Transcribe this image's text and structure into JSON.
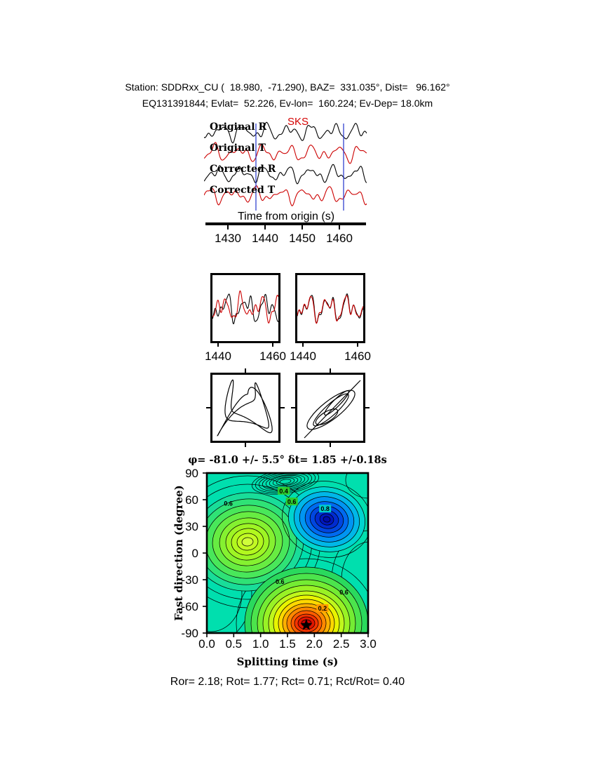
{
  "header": {
    "line1": "Station: SDDRxx_CU (  18.980,  -71.290), BAZ=  331.035°, Dist=   96.162°",
    "line2": "EQ131391844; Evlat=  52.226, Ev-lon=  160.224; Ev-Dep= 18.0km"
  },
  "waveform_panel": {
    "phase_label": "SKS",
    "phase_color": "#d40000",
    "traces": [
      {
        "label": "Original R",
        "color": "#000000"
      },
      {
        "label": "Original T",
        "color": "#cc0000"
      },
      {
        "label": "Corrected R",
        "color": "#000000"
      },
      {
        "label": "Corrected T",
        "color": "#cc0000"
      }
    ],
    "axis_label": "Time from origin (s)",
    "ticks": [
      "1430",
      "1440",
      "1450",
      "1460"
    ],
    "window_color": "#2233cc"
  },
  "zoom_panels": {
    "left_ticks": [
      "1440",
      "1460"
    ],
    "right_ticks": [
      "1440",
      "1460"
    ],
    "r_color": "#000000",
    "t_color": "#cc0000"
  },
  "contour": {
    "title": "φ= -81.0 +/- 5.5° δt= 1.85 +/-0.18s",
    "ylabel": "Fast direction (degree)",
    "xlabel": "Splitting time (s)",
    "yticks": [
      "90",
      "60",
      "30",
      "0",
      "-30",
      "-60",
      "-90"
    ],
    "xticks": [
      "0.0",
      "0.5",
      "1.0",
      "1.5",
      "2.0",
      "2.5",
      "3.0"
    ],
    "labels": [
      {
        "text": "0.6",
        "t": 0.4,
        "deg": 56,
        "bg": null
      },
      {
        "text": "0.4",
        "t": 1.43,
        "deg": 70,
        "bg": "#2ecc2e"
      },
      {
        "text": "0.6",
        "t": 1.58,
        "deg": 58,
        "bg": "#2ecc2e"
      },
      {
        "text": "0.8",
        "t": 2.2,
        "deg": 50,
        "bg": "#00cccc"
      },
      {
        "text": "0.6",
        "t": 1.36,
        "deg": -32,
        "bg": null
      },
      {
        "text": "0.2",
        "t": 2.15,
        "deg": -62,
        "bg": "#ff9900"
      },
      {
        "text": "0.6",
        "t": 2.55,
        "deg": -44,
        "bg": null
      }
    ],
    "star": {
      "t": 1.85,
      "deg": -81
    },
    "background_color": "#00dfae"
  },
  "footer": {
    "text": "Ror= 2.18; Rot= 1.77; Rct= 0.71; Rct/Rot= 0.40",
    "values": {
      "Ror": 2.18,
      "Rot": 1.77,
      "Rct": 0.71,
      "Rct_over_Rot": 0.4
    }
  },
  "chart_data": [
    {
      "type": "line",
      "panel": "sks-waveforms",
      "series": [
        {
          "name": "Original R"
        },
        {
          "name": "Original T"
        },
        {
          "name": "Corrected R"
        },
        {
          "name": "Corrected T"
        }
      ],
      "xlabel": "Time from origin (s)",
      "x_ticks": [
        1430,
        1440,
        1450,
        1460
      ],
      "phase_pick": "SKS",
      "selection_window_s": [
        1438,
        1462
      ]
    },
    {
      "type": "line",
      "panel": "window-original",
      "x_ticks": [
        1440,
        1460
      ],
      "series": [
        {
          "name": "R"
        },
        {
          "name": "T"
        }
      ]
    },
    {
      "type": "line",
      "panel": "window-corrected",
      "x_ticks": [
        1440,
        1460
      ],
      "series": [
        {
          "name": "R"
        },
        {
          "name": "T"
        }
      ]
    },
    {
      "type": "scatter",
      "panel": "particle-motion-original"
    },
    {
      "type": "scatter",
      "panel": "particle-motion-corrected"
    },
    {
      "type": "heatmap",
      "panel": "splitting-error-surface",
      "title": "φ= -81.0 +/- 5.5° δt= 1.85 +/-0.18s",
      "xlabel": "Splitting time (s)",
      "ylabel": "Fast direction (degree)",
      "xlim": [
        0.0,
        3.0
      ],
      "ylim": [
        -90,
        90
      ],
      "x_ticks": [
        0.0,
        0.5,
        1.0,
        1.5,
        2.0,
        2.5,
        3.0
      ],
      "y_ticks": [
        90,
        60,
        30,
        0,
        -30,
        -60,
        -90
      ],
      "best_phi_deg": -81.0,
      "phi_err_deg": 5.5,
      "best_dt_s": 1.85,
      "dt_err_s": 0.18,
      "best_point": {
        "dt_s": 1.85,
        "phi_deg": -81
      },
      "labeled_contour_levels": [
        0.2,
        0.4,
        0.6,
        0.8
      ],
      "minimum_region_color": "red",
      "maximum_region_color": "blue"
    },
    {
      "type": "table",
      "panel": "results",
      "values": {
        "Ror": 2.18,
        "Rot": 1.77,
        "Rct": 0.71,
        "Rct_over_Rot": 0.4
      }
    }
  ]
}
